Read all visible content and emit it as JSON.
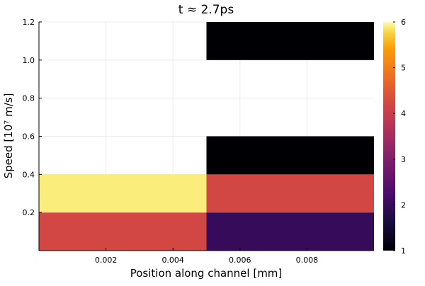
{
  "chart_data": {
    "type": "heatmap",
    "title": "t ≈ 2.7ps",
    "xlabel": "Position along channel [mm]",
    "ylabel": "Speed [10⁷ m/s]",
    "xlim": [
      0,
      0.01
    ],
    "ylim": [
      0,
      1.2
    ],
    "xticks": [
      "0.002",
      "0.004",
      "0.006",
      "0.008"
    ],
    "xtick_values": [
      0.002,
      0.004,
      0.006,
      0.008
    ],
    "yticks": [
      "0.2",
      "0.4",
      "0.6",
      "0.8",
      "1.0",
      "1.2"
    ],
    "ytick_values": [
      0.2,
      0.4,
      0.6,
      0.8,
      1.0,
      1.2
    ],
    "grid": true,
    "colorscale": "inferno",
    "colorbar": {
      "min": 1,
      "max": 6,
      "ticks": [
        "1",
        "2",
        "3",
        "4",
        "5",
        "6"
      ],
      "tick_values": [
        1,
        2,
        3,
        4,
        5,
        6
      ]
    },
    "x_edges": [
      0,
      0.005,
      0.01
    ],
    "y_edges": [
      0,
      0.2,
      0.4,
      0.6,
      1.0,
      1.2
    ],
    "values": [
      [
        4.2,
        2.0
      ],
      [
        5.9,
        4.2
      ],
      [
        null,
        1.0
      ],
      [
        null,
        null
      ],
      [
        null,
        1.0
      ]
    ]
  }
}
